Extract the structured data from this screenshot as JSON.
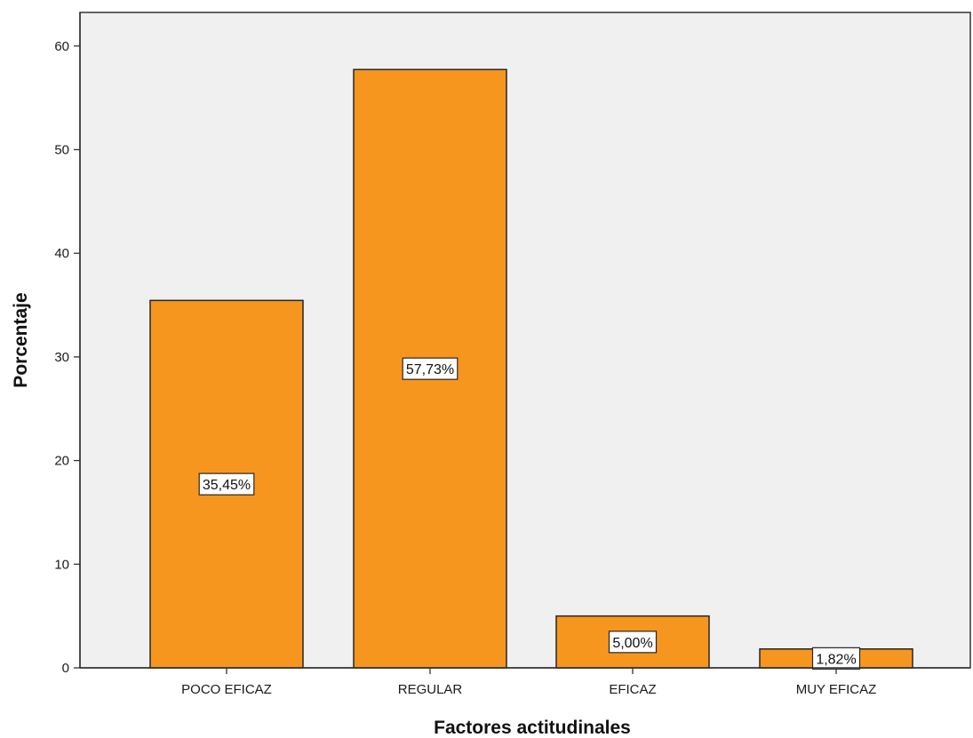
{
  "chart_data": {
    "type": "bar",
    "title": "",
    "xlabel": "Factores actitudinales",
    "ylabel": "Porcentaje",
    "categories": [
      "POCO EFICAZ",
      "REGULAR",
      "EFICAZ",
      "MUY EFICAZ"
    ],
    "values": [
      35.45,
      57.73,
      5.0,
      1.82
    ],
    "data_labels": [
      "35,45%",
      "57,73%",
      "5,00%",
      "1,82%"
    ],
    "ylim": [
      0,
      63
    ],
    "yticks": [
      0,
      10,
      20,
      30,
      40,
      50,
      60
    ],
    "ytick_labels": [
      "0",
      "10",
      "20",
      "30",
      "40",
      "50",
      "60"
    ],
    "grid": false,
    "legend": "none",
    "colors": {
      "bar_fill": "#F7961E",
      "bar_stroke": "#262626",
      "plot_background": "#F0F0F0",
      "axis": "#333333",
      "label_box_fill": "#FFFFFF",
      "label_box_stroke": "#262626"
    }
  }
}
